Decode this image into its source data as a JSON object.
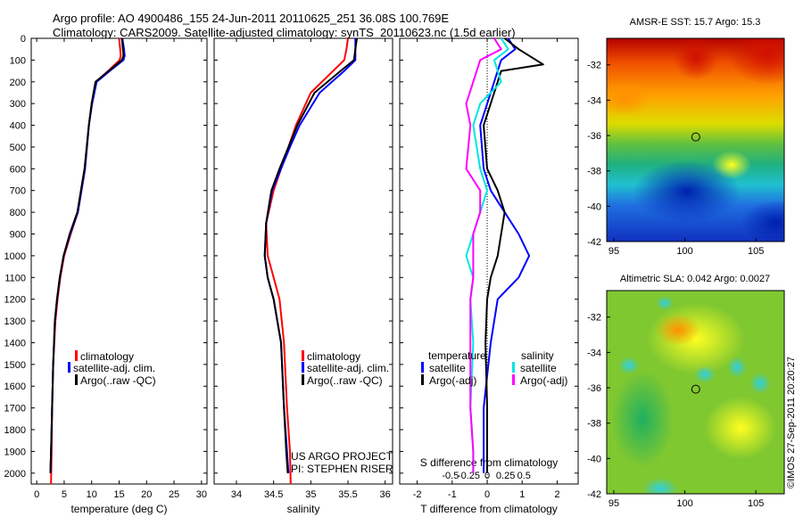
{
  "title": {
    "line1": "Argo profile: AO 4900486_155 24-Jun-2011 20110625_251 36.08S 100.769E",
    "line2": "Climatology: CARS2009. Satellite-adjusted climatology: synTS_20110623.nc (1.5d earlier)"
  },
  "colors": {
    "climatology": "#ff0000",
    "satellite": "#0000ff",
    "argo": "#000000",
    "salinity_satellite": "#00e5e5",
    "salinity_argo": "#ff00ff"
  },
  "chart_data": [
    {
      "type": "line",
      "name": "temperature-profile",
      "xlabel": "temperature (deg C)",
      "ylabel": "",
      "xlim": [
        -1,
        31
      ],
      "ylim": [
        2050,
        0
      ],
      "xticks": [
        0,
        5,
        10,
        15,
        20,
        25,
        30
      ],
      "yticks": [
        0,
        100,
        200,
        300,
        400,
        500,
        600,
        700,
        800,
        900,
        1000,
        1100,
        1200,
        1300,
        1400,
        1500,
        1600,
        1700,
        1800,
        1900,
        2000
      ],
      "legend": [
        "climatology",
        "satellite-adj. clim.",
        "Argo(..raw -QC)"
      ],
      "series": [
        {
          "name": "climatology",
          "x": [
            15.0,
            15.2,
            15.3,
            15.1,
            13.0,
            10.8,
            10.0,
            9.5,
            8.8,
            7.5,
            6.2,
            5.0,
            4.3,
            3.8,
            3.4,
            3.0,
            2.8,
            2.7,
            2.6
          ],
          "y": [
            0,
            50,
            80,
            100,
            150,
            200,
            300,
            400,
            600,
            800,
            900,
            1000,
            1100,
            1200,
            1300,
            1500,
            1700,
            1900,
            2050
          ]
        },
        {
          "name": "satellite-adj. clim.",
          "x": [
            15.6,
            15.9,
            16.0,
            15.8,
            13.3,
            10.9,
            10.1,
            9.5,
            8.8,
            7.5,
            6.1,
            4.9,
            4.2,
            3.7,
            3.3,
            3.0,
            2.8,
            2.6,
            2.5
          ],
          "y": [
            0,
            50,
            80,
            100,
            150,
            200,
            300,
            400,
            600,
            800,
            900,
            1000,
            1100,
            1200,
            1300,
            1500,
            1700,
            1900,
            2000
          ]
        },
        {
          "name": "Argo(..raw -QC)",
          "x": [
            15.5,
            15.7,
            15.8,
            15.5,
            13.1,
            10.7,
            10.0,
            9.5,
            8.7,
            7.4,
            6.0,
            4.9,
            4.2,
            3.7,
            3.3,
            3.0,
            2.8,
            2.6,
            2.5
          ],
          "y": [
            0,
            50,
            80,
            100,
            150,
            200,
            300,
            400,
            600,
            800,
            900,
            1000,
            1100,
            1200,
            1300,
            1500,
            1700,
            1900,
            2000
          ]
        }
      ]
    },
    {
      "type": "line",
      "name": "salinity-profile",
      "xlabel": "salinity",
      "xlim": [
        33.7,
        36.1
      ],
      "ylim": [
        2050,
        0
      ],
      "xticks": [
        34,
        34.5,
        35,
        35.5,
        36
      ],
      "legend": [
        "climatology",
        "satellite-adj. clim.",
        "Argo(..raw -QC)"
      ],
      "annotation": [
        "US ARGO PROJECT",
        "PI: STEPHEN RISER"
      ],
      "series": [
        {
          "name": "climatology",
          "x": [
            35.5,
            35.48,
            35.45,
            35.3,
            35.0,
            34.8,
            34.7,
            34.6,
            34.5,
            34.4,
            34.42,
            34.5,
            34.58,
            34.64,
            34.68,
            34.72,
            34.73
          ],
          "y": [
            0,
            50,
            100,
            150,
            250,
            400,
            500,
            600,
            700,
            850,
            1000,
            1100,
            1200,
            1400,
            1700,
            1900,
            2050
          ]
        },
        {
          "name": "satellite-adj. clim.",
          "x": [
            35.6,
            35.6,
            35.6,
            35.45,
            35.12,
            34.85,
            34.72,
            34.6,
            34.48,
            34.4,
            34.38,
            34.42,
            34.5,
            34.6,
            34.64,
            34.68,
            34.7
          ],
          "y": [
            0,
            50,
            100,
            150,
            250,
            400,
            500,
            600,
            700,
            850,
            1000,
            1100,
            1200,
            1400,
            1700,
            1900,
            2000
          ]
        },
        {
          "name": "Argo(..raw -QC)",
          "x": [
            35.62,
            35.6,
            35.58,
            35.4,
            35.05,
            34.82,
            34.7,
            34.58,
            34.47,
            34.4,
            34.38,
            34.42,
            34.5,
            34.6,
            34.64,
            34.67,
            34.69
          ],
          "y": [
            0,
            50,
            100,
            150,
            250,
            400,
            500,
            600,
            700,
            850,
            1000,
            1100,
            1200,
            1400,
            1700,
            1900,
            2000
          ]
        }
      ]
    },
    {
      "type": "line",
      "name": "difference-profile",
      "xlabel": "T difference from climatology",
      "xlabel2": "S difference from climatology",
      "xlim": [
        -2.5,
        2.6
      ],
      "ylim": [
        2050,
        0
      ],
      "xticks": [
        -2,
        -1,
        0,
        1,
        2
      ],
      "xticks2_labels": [
        "-0.5",
        "-0.25",
        "0",
        "0.25",
        "0.5"
      ],
      "legend_temperature": "temperature",
      "legend_salinity": "salinity",
      "legend": [
        "satellite",
        "Argo(-adj)",
        "satellite",
        "Argo(-adj)"
      ],
      "series": [
        {
          "name": "temperature satellite",
          "x": [
            0.6,
            0.8,
            0.4,
            0.3,
            0.1,
            -0.2,
            -0.1,
            0.1,
            0.5,
            0.9,
            1.2,
            0.9,
            0.3,
            0.1,
            -0.1,
            -0.1,
            -0.1
          ],
          "y": [
            0,
            50,
            100,
            150,
            250,
            400,
            600,
            700,
            800,
            900,
            1000,
            1100,
            1200,
            1400,
            1700,
            1900,
            2000
          ]
        },
        {
          "name": "temperature Argo(-adj)",
          "x": [
            0.5,
            0.9,
            1.6,
            0.4,
            0.2,
            -0.1,
            0.0,
            0.3,
            0.5,
            0.4,
            0.3,
            0.1,
            0.0,
            -0.05,
            0.0,
            0.0,
            0.0
          ],
          "y": [
            0,
            50,
            120,
            150,
            250,
            400,
            600,
            700,
            800,
            900,
            1000,
            1100,
            1200,
            1400,
            1700,
            1900,
            2000
          ]
        },
        {
          "name": "salinity satellite",
          "x": [
            0.1,
            0.15,
            0.05,
            0.1,
            -0.05,
            -0.1,
            -0.05,
            0.0,
            -0.05,
            -0.1,
            -0.15,
            -0.1,
            -0.12,
            -0.1,
            -0.12,
            -0.1,
            -0.1
          ],
          "y": [
            0,
            50,
            100,
            200,
            300,
            400,
            600,
            700,
            800,
            900,
            1000,
            1100,
            1200,
            1400,
            1700,
            1900,
            2000
          ]
        },
        {
          "name": "salinity Argo(-adj)",
          "x": [
            0.05,
            0.1,
            -0.05,
            -0.1,
            -0.15,
            -0.12,
            -0.15,
            -0.05,
            -0.05,
            -0.1,
            -0.1,
            -0.1,
            -0.12,
            -0.12,
            -0.12,
            -0.1,
            -0.1
          ],
          "y": [
            0,
            50,
            100,
            200,
            300,
            400,
            600,
            700,
            800,
            900,
            1000,
            1100,
            1200,
            1400,
            1700,
            1900,
            2000
          ]
        }
      ]
    },
    {
      "type": "heatmap",
      "name": "sst-map",
      "title": "AMSR-E SST: 15.7 Argo: 15.3",
      "xlim": [
        94.5,
        107
      ],
      "ylim": [
        -42,
        -30.5
      ],
      "xticks": [
        95,
        100,
        105
      ],
      "yticks": [
        -32,
        -34,
        -36,
        -38,
        -40,
        -42
      ],
      "marker": {
        "lon": 100.769,
        "lat": -36.08
      }
    },
    {
      "type": "heatmap",
      "name": "sla-map",
      "title": "Altimetric SLA: 0.042 Argo: 0.0027",
      "xlim": [
        94.5,
        107
      ],
      "ylim": [
        -42,
        -30.5
      ],
      "xticks": [
        95,
        100,
        105
      ],
      "yticks": [
        -32,
        -34,
        -36,
        -38,
        -40,
        -42
      ],
      "marker": {
        "lon": 100.769,
        "lat": -36.08
      }
    }
  ],
  "footer": {
    "credit": "©IMOS 27-Sep-2011 20:20:27"
  }
}
